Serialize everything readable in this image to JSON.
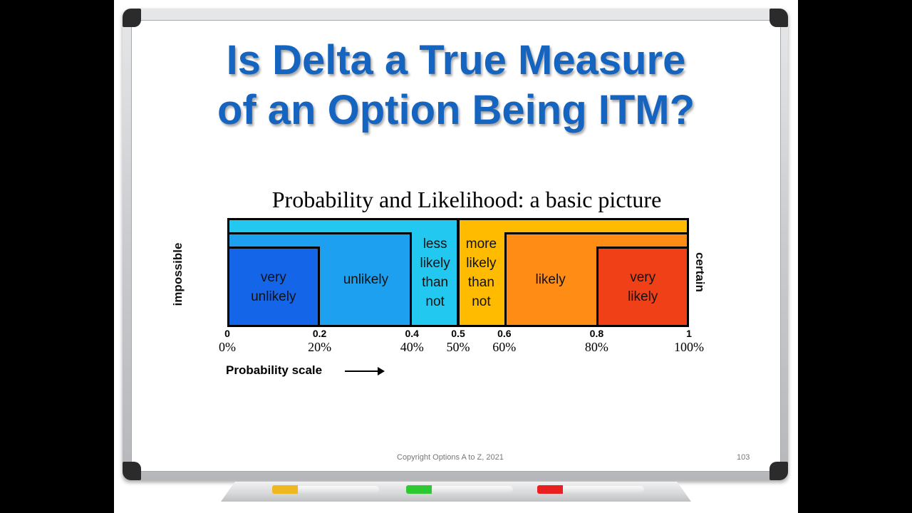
{
  "slide": {
    "title_line1": "Is Delta a True Measure",
    "title_line2": "of an Option Being ITM?",
    "footer": "Copyright Options A to Z, 2021",
    "page_number": "103"
  },
  "diagram": {
    "title": "Probability and Likelihood: a basic picture",
    "left_end_label": "impossible",
    "right_end_label": "certain",
    "categories": [
      {
        "label": "very unlikely",
        "from": 0.0,
        "to": 0.2,
        "color": "#1565e8"
      },
      {
        "label": "unlikely",
        "from": 0.2,
        "to": 0.4,
        "color": "#1ea0f0"
      },
      {
        "label": "less likely than not",
        "from": 0.4,
        "to": 0.5,
        "color": "#22c8f0"
      },
      {
        "label": "more likely than not",
        "from": 0.5,
        "to": 0.6,
        "color": "#ffbb00"
      },
      {
        "label": "likely",
        "from": 0.6,
        "to": 0.8,
        "color": "#ff8c14"
      },
      {
        "label": "very likely",
        "from": 0.8,
        "to": 1.0,
        "color": "#f04018"
      }
    ],
    "left_band_color": "#22c8f0",
    "right_band_color": "#ffbb00",
    "ticks": [
      {
        "value": "0",
        "percent": "0%"
      },
      {
        "value": "0.2",
        "percent": "20%"
      },
      {
        "value": "0.4",
        "percent": "40%"
      },
      {
        "value": "0.5",
        "percent": "50%"
      },
      {
        "value": "0.6",
        "percent": "60%"
      },
      {
        "value": "0.8",
        "percent": "80%"
      },
      {
        "value": "1",
        "percent": "100%"
      }
    ],
    "scale_label": "Probability scale"
  }
}
